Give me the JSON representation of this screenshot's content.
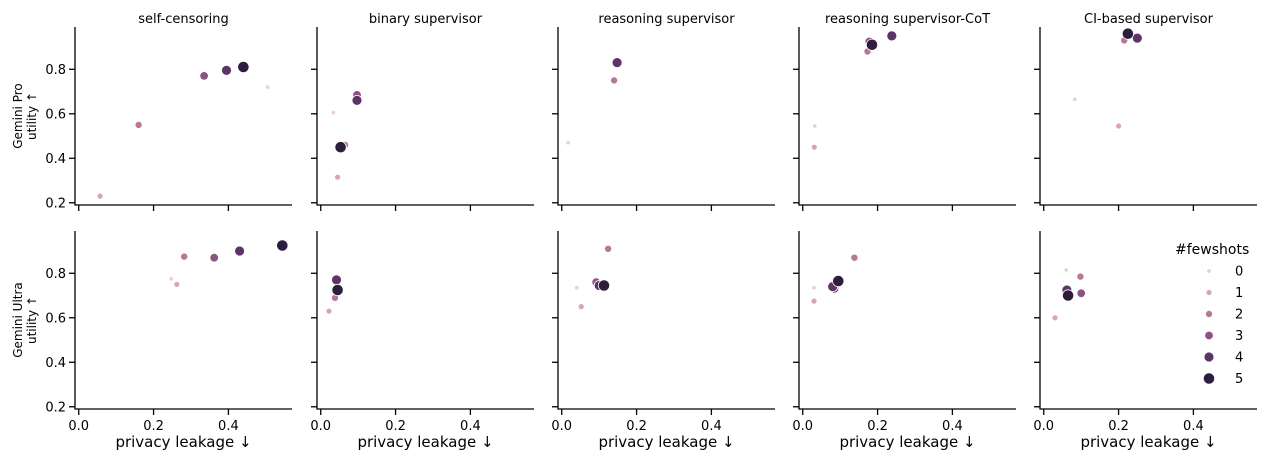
{
  "chart_data": {
    "type": "scatter",
    "columns": [
      "self-censoring",
      "binary supervisor",
      "reasoning supervisor",
      "reasoning supervisor-CoT",
      "CI-based supervisor"
    ],
    "rows": [
      "Gemini Pro\nutility ↑",
      "Gemini Ultra\nutility ↑"
    ],
    "xlabel": "privacy leakage ↓",
    "xlim": [
      -0.01,
      0.57
    ],
    "ylim": [
      0.19,
      0.99
    ],
    "xticks": [
      0.0,
      0.2,
      0.4
    ],
    "yticks": [
      0.2,
      0.4,
      0.6,
      0.8
    ],
    "xtick_labels": [
      "0.0",
      "0.2",
      "0.4"
    ],
    "ytick_labels": [
      "0.2",
      "0.4",
      "0.6",
      "0.8"
    ],
    "legend": {
      "title": "#fewshots",
      "placement": "right",
      "entries": [
        "0",
        "1",
        "2",
        "3",
        "4",
        "5"
      ]
    },
    "hue_colors": [
      "#eed1c8",
      "#d8a6ad",
      "#b87894",
      "#8b5283",
      "#5e3468",
      "#2d1e3e"
    ],
    "panels": [
      [
        [
          [
            0.505,
            0.72,
            0
          ],
          [
            0.057,
            0.23,
            1
          ],
          [
            0.16,
            0.55,
            2
          ],
          [
            0.335,
            0.77,
            3
          ],
          [
            0.395,
            0.795,
            4
          ],
          [
            0.44,
            0.81,
            5
          ]
        ],
        [
          [
            0.034,
            0.605,
            0
          ],
          [
            0.045,
            0.315,
            1
          ],
          [
            0.065,
            0.46,
            2
          ],
          [
            0.097,
            0.685,
            3
          ],
          [
            0.097,
            0.66,
            4
          ],
          [
            0.053,
            0.45,
            5
          ]
        ],
        [
          [
            0.017,
            0.47,
            0
          ],
          [
            0.14,
            0.75,
            2
          ],
          [
            0.148,
            0.83,
            4
          ]
        ],
        [
          [
            0.032,
            0.545,
            0
          ],
          [
            0.031,
            0.45,
            1
          ],
          [
            0.173,
            0.88,
            2
          ],
          [
            0.178,
            0.925,
            3
          ],
          [
            0.238,
            0.95,
            4
          ],
          [
            0.185,
            0.91,
            5
          ]
        ],
        [
          [
            0.083,
            0.665,
            0
          ],
          [
            0.2,
            0.545,
            1
          ],
          [
            0.215,
            0.93,
            2
          ],
          [
            0.25,
            0.94,
            4
          ],
          [
            0.225,
            0.96,
            5
          ]
        ]
      ],
      [
        [
          [
            0.247,
            0.775,
            0
          ],
          [
            0.262,
            0.75,
            1
          ],
          [
            0.282,
            0.875,
            2
          ],
          [
            0.362,
            0.87,
            3
          ],
          [
            0.43,
            0.9,
            4
          ],
          [
            0.544,
            0.925,
            5
          ]
        ],
        [
          [
            0.022,
            0.63,
            1
          ],
          [
            0.038,
            0.69,
            2
          ],
          [
            0.04,
            0.725,
            3
          ],
          [
            0.042,
            0.77,
            4
          ],
          [
            0.045,
            0.725,
            5
          ]
        ],
        [
          [
            0.04,
            0.735,
            0
          ],
          [
            0.052,
            0.65,
            1
          ],
          [
            0.124,
            0.91,
            2
          ],
          [
            0.092,
            0.76,
            3
          ],
          [
            0.1,
            0.745,
            4
          ],
          [
            0.113,
            0.745,
            5
          ]
        ],
        [
          [
            0.03,
            0.735,
            0
          ],
          [
            0.03,
            0.675,
            1
          ],
          [
            0.138,
            0.87,
            2
          ],
          [
            0.085,
            0.73,
            3
          ],
          [
            0.08,
            0.74,
            4
          ],
          [
            0.095,
            0.765,
            5
          ]
        ],
        [
          [
            0.06,
            0.815,
            0
          ],
          [
            0.03,
            0.6,
            1
          ],
          [
            0.098,
            0.785,
            2
          ],
          [
            0.1,
            0.71,
            3
          ],
          [
            0.062,
            0.725,
            4
          ],
          [
            0.065,
            0.7,
            5
          ]
        ]
      ]
    ]
  }
}
